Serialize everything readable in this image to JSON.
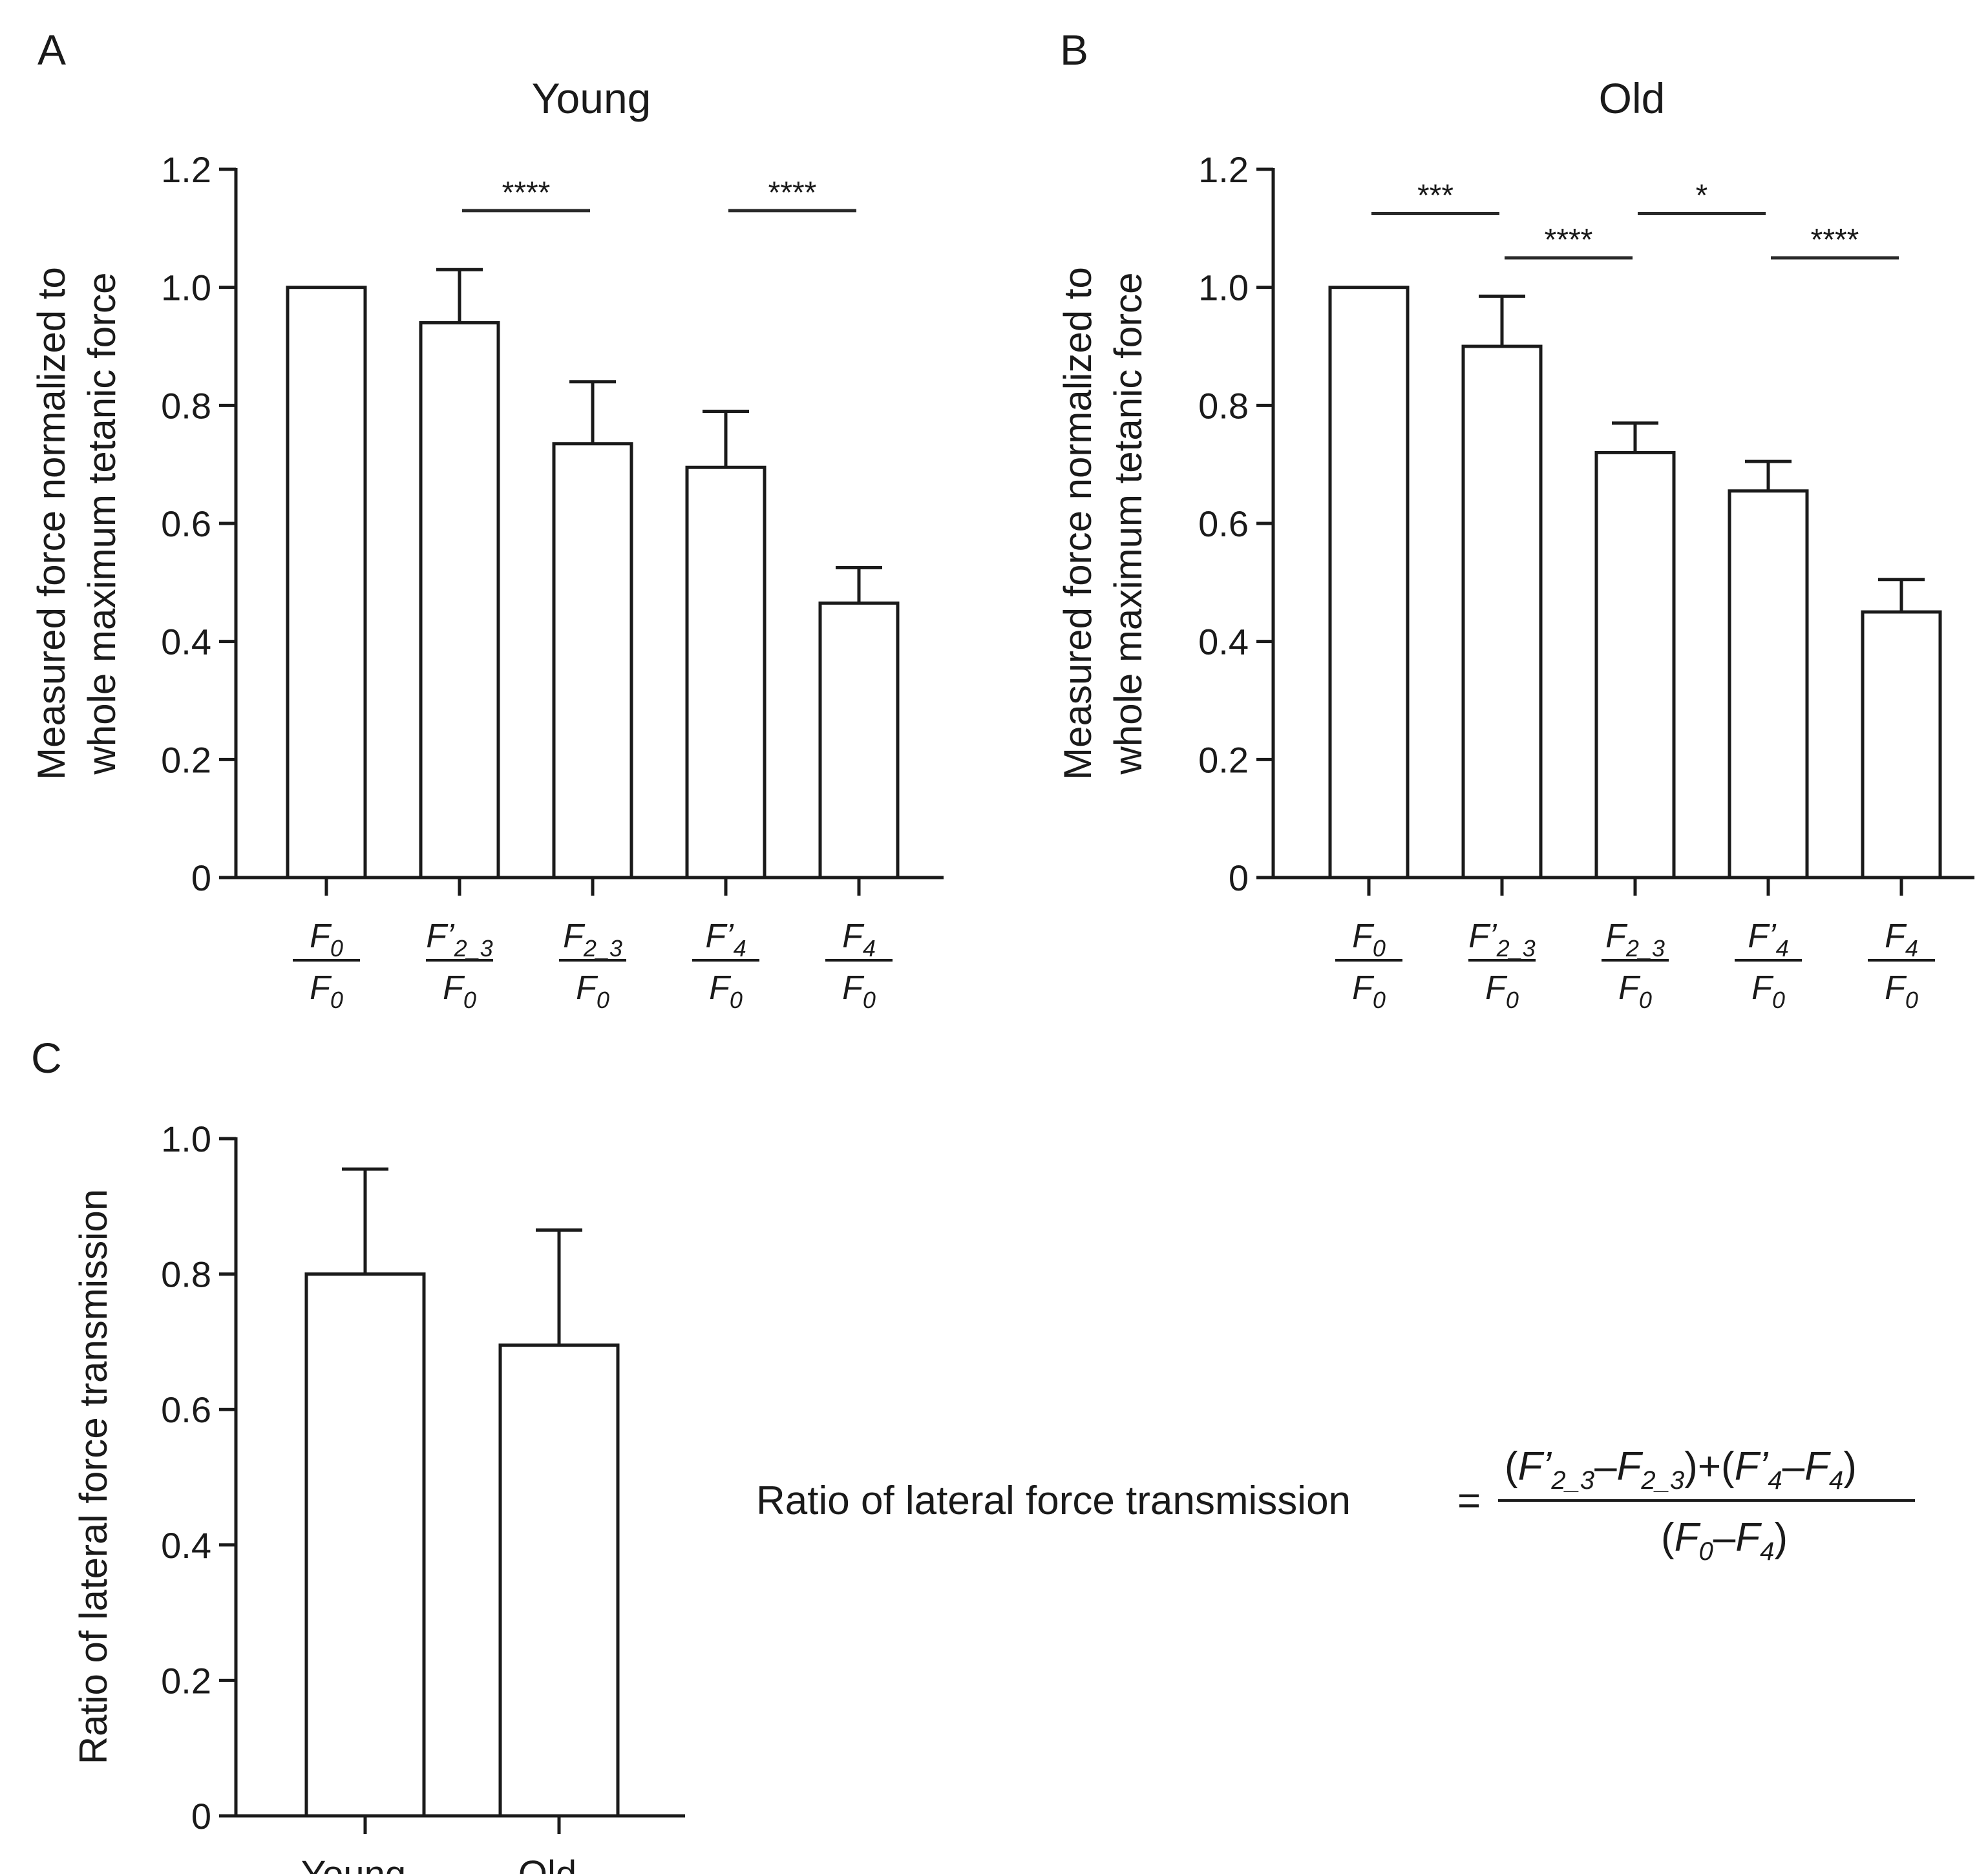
{
  "chart_data": [
    {
      "panel": "A",
      "type": "bar",
      "title": "Young",
      "ylabel": [
        "Measured force normalized to",
        "whole maximum tetanic force"
      ],
      "xlabel": "",
      "ylim": [
        0,
        1.2
      ],
      "yticks": [
        "0",
        "0.2",
        "0.4",
        "0.6",
        "0.8",
        "1.0",
        "1.2"
      ],
      "categories": [
        {
          "num": "F",
          "num_sub": "0",
          "num_prime": false,
          "den": "F",
          "den_sub": "0"
        },
        {
          "num": "F",
          "num_sub": "2_3",
          "num_prime": true,
          "den": "F",
          "den_sub": "0"
        },
        {
          "num": "F",
          "num_sub": "2_3",
          "num_prime": false,
          "den": "F",
          "den_sub": "0"
        },
        {
          "num": "F",
          "num_sub": "4",
          "num_prime": true,
          "den": "F",
          "den_sub": "0"
        },
        {
          "num": "F",
          "num_sub": "4",
          "num_prime": false,
          "den": "F",
          "den_sub": "0"
        }
      ],
      "values": [
        1.0,
        0.94,
        0.735,
        0.695,
        0.465
      ],
      "errors": [
        0,
        0.09,
        0.105,
        0.095,
        0.06
      ],
      "significance": [
        {
          "from": 1,
          "to": 2,
          "label": "****",
          "y": 1.13
        },
        {
          "from": 3,
          "to": 4,
          "label": "****",
          "y": 1.13
        }
      ]
    },
    {
      "panel": "B",
      "type": "bar",
      "title": "Old",
      "ylabel": [
        "Measured force normalized to",
        "whole maximum tetanic force"
      ],
      "xlabel": "",
      "ylim": [
        0,
        1.2
      ],
      "yticks": [
        "0",
        "0.2",
        "0.4",
        "0.6",
        "0.8",
        "1.0",
        "1.2"
      ],
      "categories": [
        {
          "num": "F",
          "num_sub": "0",
          "num_prime": false,
          "den": "F",
          "den_sub": "0"
        },
        {
          "num": "F",
          "num_sub": "2_3",
          "num_prime": true,
          "den": "F",
          "den_sub": "0"
        },
        {
          "num": "F",
          "num_sub": "2_3",
          "num_prime": false,
          "den": "F",
          "den_sub": "0"
        },
        {
          "num": "F",
          "num_sub": "4",
          "num_prime": true,
          "den": "F",
          "den_sub": "0"
        },
        {
          "num": "F",
          "num_sub": "4",
          "num_prime": false,
          "den": "F",
          "den_sub": "0"
        }
      ],
      "values": [
        1.0,
        0.9,
        0.72,
        0.655,
        0.45
      ],
      "errors": [
        0,
        0.085,
        0.05,
        0.05,
        0.055
      ],
      "significance": [
        {
          "from": 0,
          "to": 1,
          "label": "***",
          "y": 1.125
        },
        {
          "from": 1,
          "to": 2,
          "label": "****",
          "y": 1.05
        },
        {
          "from": 2,
          "to": 3,
          "label": "*",
          "y": 1.125
        },
        {
          "from": 3,
          "to": 4,
          "label": "****",
          "y": 1.05
        }
      ]
    },
    {
      "panel": "C",
      "type": "bar",
      "title": "",
      "ylabel": [
        "Ratio of lateral force transmission"
      ],
      "xlabel": "",
      "ylim": [
        0,
        1.0
      ],
      "yticks": [
        "0",
        "0.2",
        "0.4",
        "0.6",
        "0.8",
        "1.0"
      ],
      "categories": [
        "Young",
        "Old"
      ],
      "values": [
        0.8,
        0.695
      ],
      "errors": [
        0.155,
        0.17
      ],
      "significance": []
    }
  ],
  "formula": {
    "lhs": "Ratio of lateral force transmission",
    "equals": "=",
    "minus": "–",
    "plus": "+",
    "open": "(",
    "close": ")",
    "F": "F",
    "prime": "’",
    "sub_23": "2_3",
    "sub_4": "4",
    "sub_0": "0"
  }
}
